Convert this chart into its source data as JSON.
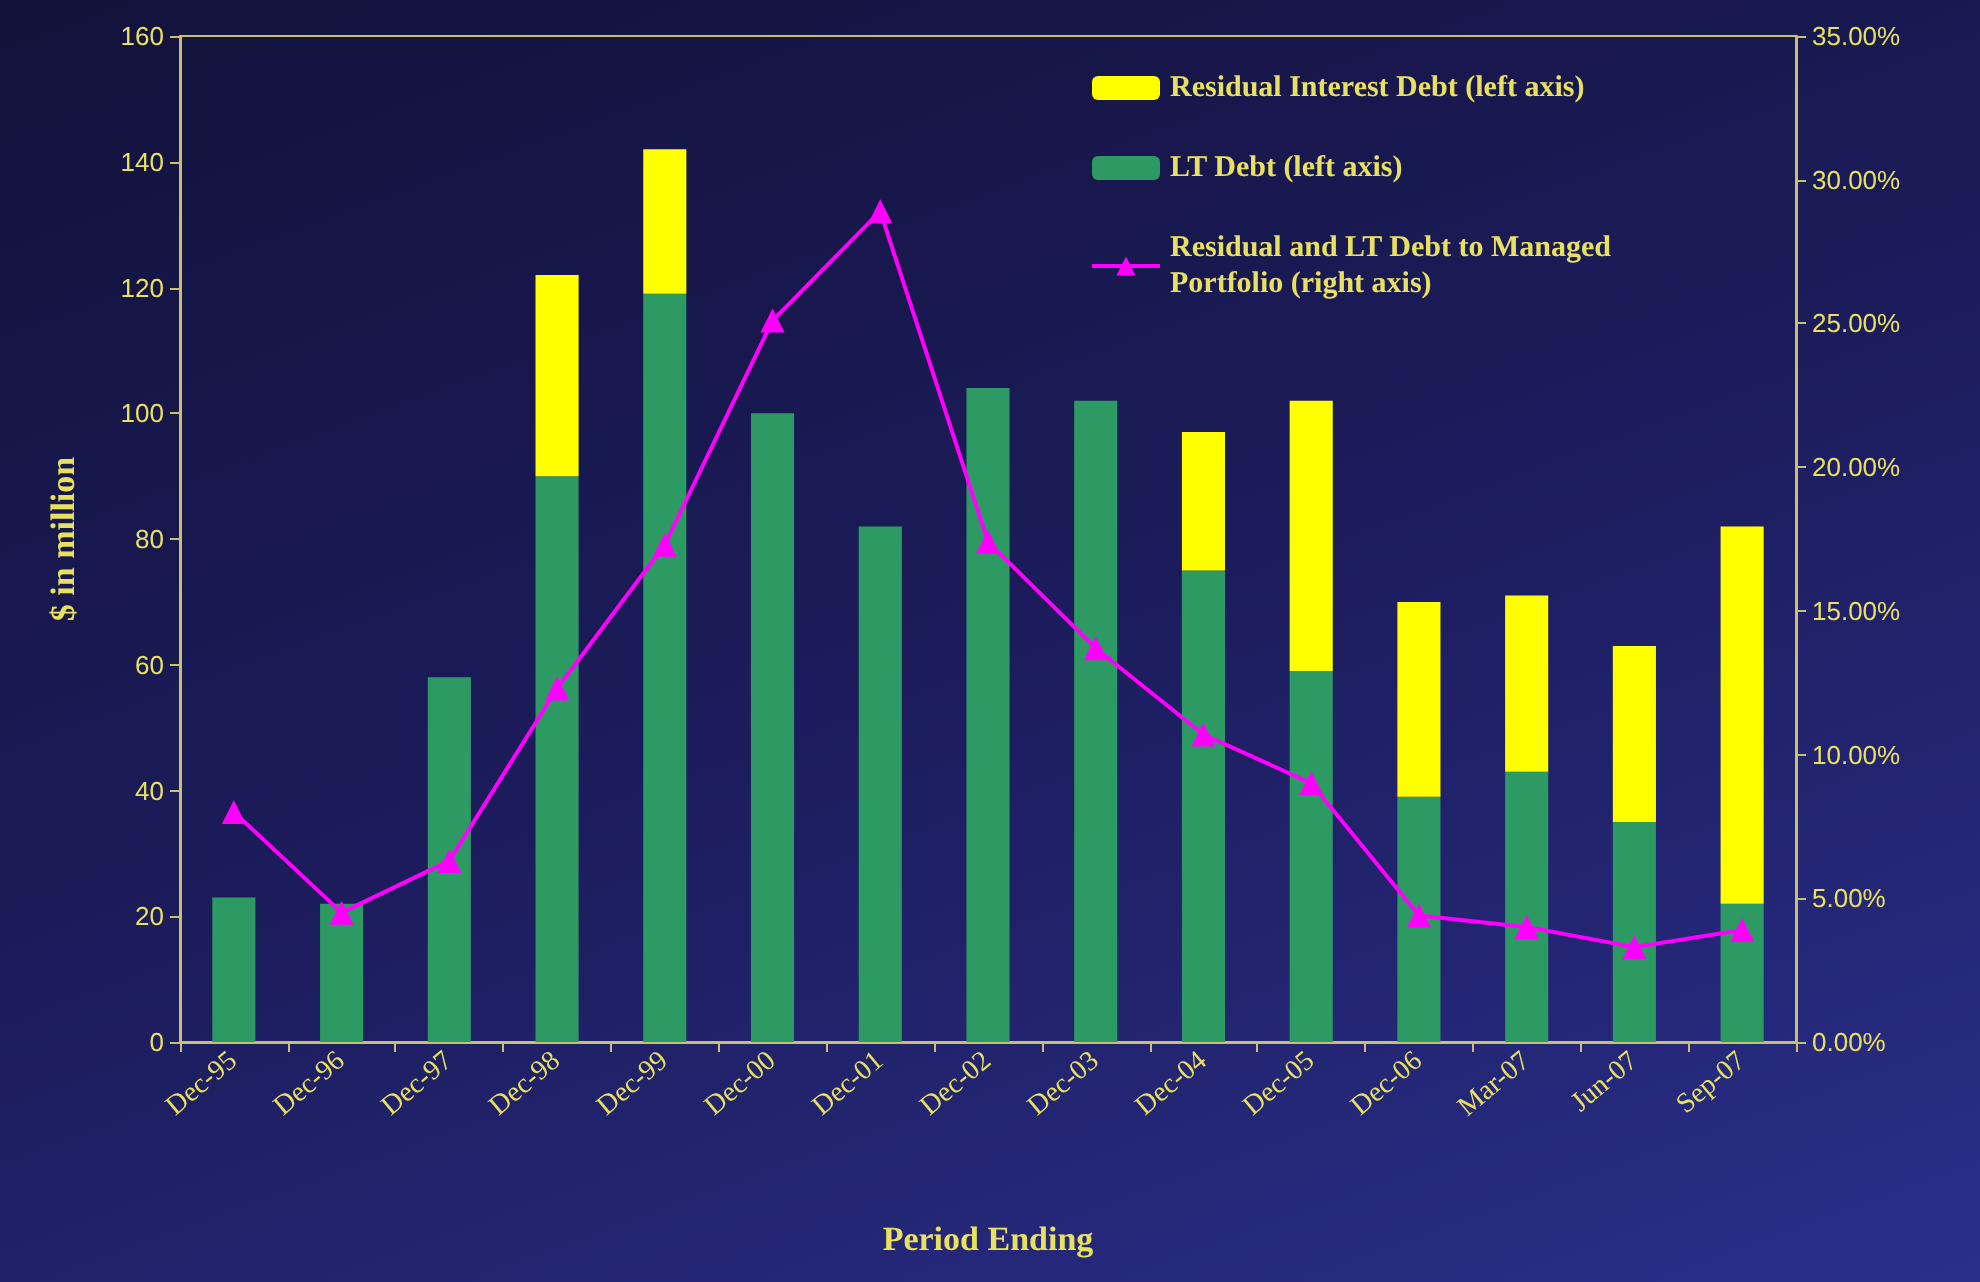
{
  "chart_data": {
    "type": "bar",
    "stacked": true,
    "xlabel": "Period Ending",
    "ylabel": "$ in million",
    "categories": [
      "Dec-95",
      "Dec-96",
      "Dec-97",
      "Dec-98",
      "Dec-99",
      "Dec-00",
      "Dec-01",
      "Dec-02",
      "Dec-03",
      "Dec-04",
      "Dec-05",
      "Dec-06",
      "Mar-07",
      "Jun-07",
      "Sep-07"
    ],
    "series": [
      {
        "name": "LT Debt (left axis)",
        "color": "#2e9a63",
        "values": [
          23,
          22,
          58,
          90,
          119,
          100,
          82,
          104,
          102,
          75,
          59,
          39,
          43,
          35,
          22
        ]
      },
      {
        "name": "Residual Interest Debt (left axis)",
        "color": "#ffff00",
        "values": [
          0,
          0,
          0,
          32,
          23,
          0,
          0,
          0,
          0,
          22,
          43,
          31,
          28,
          28,
          60
        ]
      },
      {
        "name": "Residual and LT Debt to Managed Portfolio (right axis)",
        "type": "line",
        "axis": "y2",
        "color": "#ff00ff",
        "values": [
          8.0,
          4.5,
          6.3,
          12.3,
          17.3,
          25.1,
          28.9,
          17.4,
          13.7,
          10.7,
          9.0,
          4.4,
          4.0,
          3.3,
          3.9
        ]
      }
    ],
    "ylim": [
      0,
      160
    ],
    "yticks": [
      0,
      20,
      40,
      60,
      80,
      100,
      120,
      140,
      160
    ],
    "y2lim": [
      0,
      35
    ],
    "y2ticks": [
      {
        "value": 0,
        "label": "0.00%"
      },
      {
        "value": 5,
        "label": "5.00%"
      },
      {
        "value": 10,
        "label": "10.00%"
      },
      {
        "value": 15,
        "label": "15.00%"
      },
      {
        "value": 20,
        "label": "20.00%"
      },
      {
        "value": 25,
        "label": "25.00%"
      },
      {
        "value": 30,
        "label": "30.00%"
      },
      {
        "value": 35,
        "label": "35.00%"
      }
    ],
    "grid": false,
    "legend": "top right",
    "marker": "triangle",
    "line_style": "solid"
  }
}
